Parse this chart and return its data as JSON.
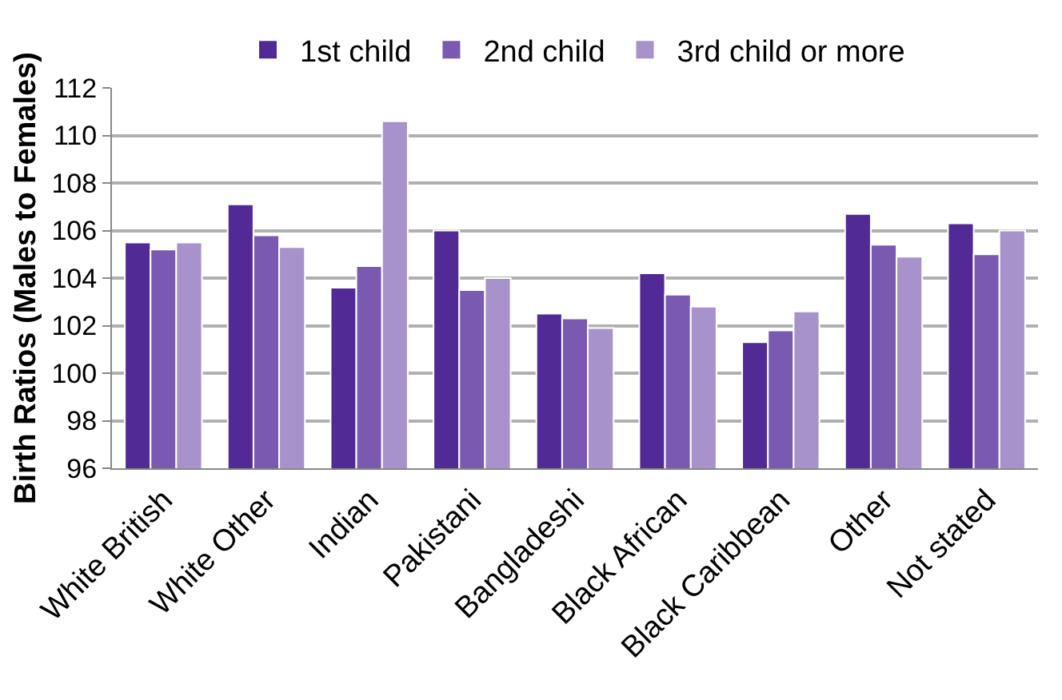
{
  "chart_data": {
    "type": "bar",
    "ylabel": "Birth Ratios (Males to Females)",
    "categories": [
      "White British",
      "White Other",
      "Indian",
      "Pakistani",
      "Bangladeshi",
      "Black African",
      "Black Caribbean",
      "Other",
      "Not stated"
    ],
    "series": [
      {
        "name": "1st child",
        "color": "#522a96",
        "values": [
          105.5,
          107.1,
          103.6,
          106.0,
          102.5,
          104.2,
          101.3,
          106.7,
          106.3
        ]
      },
      {
        "name": "2nd child",
        "color": "#7a59b0",
        "values": [
          105.2,
          105.8,
          104.5,
          103.5,
          102.3,
          103.3,
          101.8,
          105.4,
          105.0
        ]
      },
      {
        "name": "3rd child or more",
        "color": "#a892cb",
        "values": [
          105.5,
          105.3,
          110.6,
          104.0,
          101.9,
          102.8,
          102.6,
          104.9,
          106.0
        ]
      }
    ],
    "ylim": [
      96,
      112
    ],
    "yticks": [
      96,
      98,
      100,
      102,
      104,
      106,
      108,
      110,
      112
    ],
    "grid": "y",
    "legend": "top"
  }
}
